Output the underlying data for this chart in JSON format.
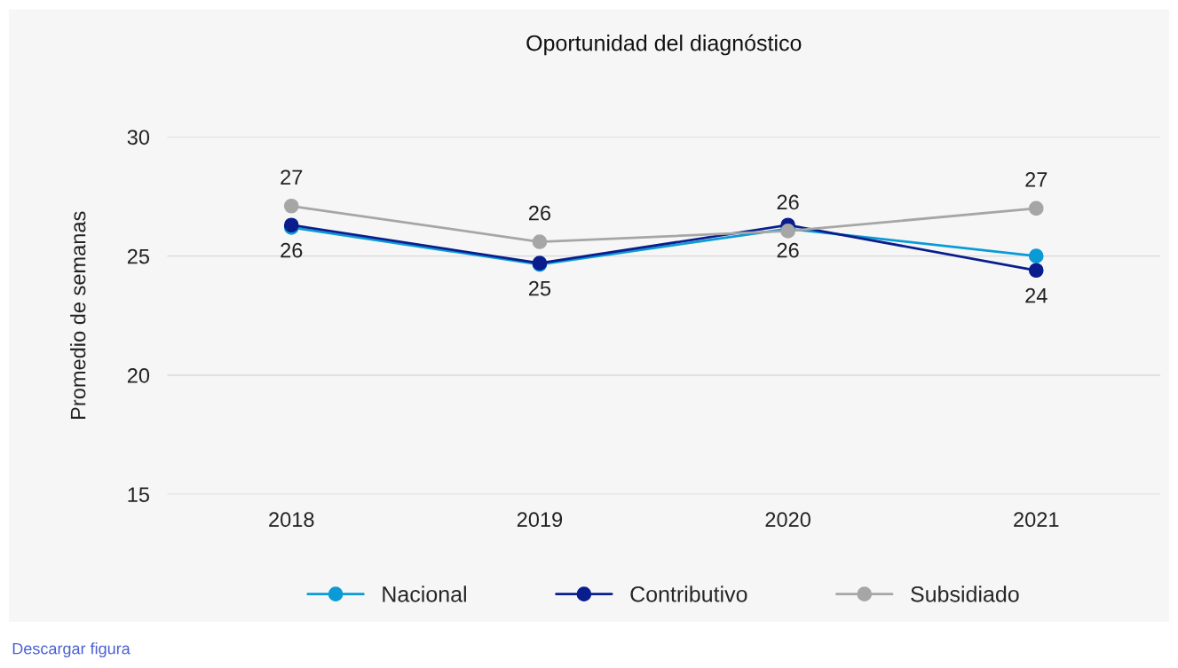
{
  "chart_data": {
    "type": "line",
    "title": "Oportunidad del diagnóstico",
    "ylabel": "Promedio de semanas",
    "categories": [
      "2018",
      "2019",
      "2020",
      "2021"
    ],
    "series": [
      {
        "name": "Nacional",
        "color": "#0a9bd6",
        "values": [
          26.2,
          24.65,
          26.15,
          25.0
        ]
      },
      {
        "name": "Contributivo",
        "color": "#0b1d8c",
        "values": [
          26.3,
          24.7,
          26.3,
          24.4
        ],
        "value_labels": [
          "26",
          "25",
          "26",
          "24"
        ]
      },
      {
        "name": "Subsidiado",
        "color": "#a6a6a6",
        "values": [
          27.1,
          25.6,
          26.05,
          27.0
        ],
        "value_labels": [
          "27",
          "26",
          "26",
          "27"
        ]
      }
    ],
    "ylim": [
      15,
      30
    ],
    "yticks": [
      15,
      20,
      25,
      30
    ],
    "grid": "y",
    "legend": "bottom",
    "marker": "circle",
    "line_style": "solid",
    "annotations": [
      "Descargar figura"
    ]
  }
}
